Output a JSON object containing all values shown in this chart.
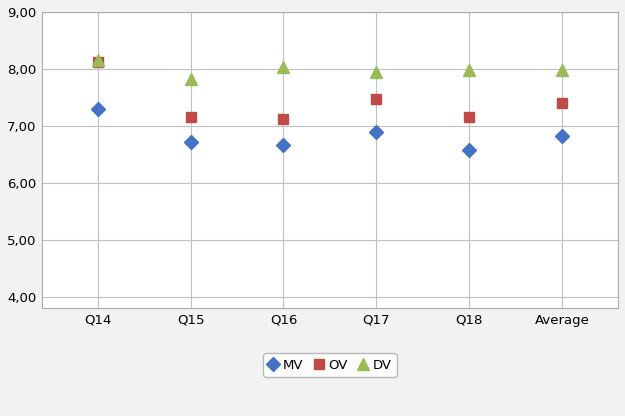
{
  "categories": [
    "Q14",
    "Q15",
    "Q16",
    "Q17",
    "Q18",
    "Average"
  ],
  "MV": [
    7.3,
    6.72,
    6.67,
    6.9,
    6.57,
    6.83
  ],
  "OV": [
    8.13,
    7.15,
    7.12,
    7.48,
    7.15,
    7.4
  ],
  "DV": [
    8.15,
    7.82,
    8.03,
    7.95,
    7.98,
    7.98
  ],
  "mv_color": "#4472C4",
  "ov_color": "#BE4B48",
  "dv_color": "#9BBB59",
  "ylim_min": 3.8,
  "ylim_max": 9.0,
  "yticks": [
    4.0,
    5.0,
    6.0,
    7.0,
    8.0,
    9.0
  ],
  "legend_labels": [
    "MV",
    "OV",
    "DV"
  ],
  "background_color": "#FFFFFF",
  "fig_background": "#F2F2F2",
  "grid_color": "#C0C0C0",
  "spine_color": "#AAAAAA"
}
